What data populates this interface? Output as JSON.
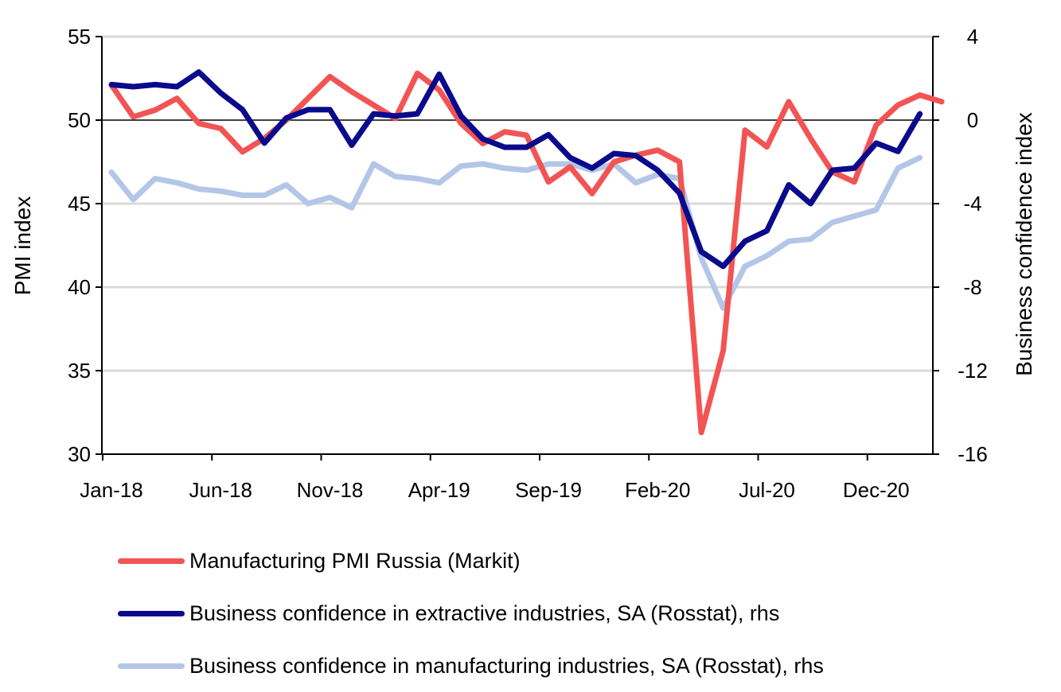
{
  "chart_data": {
    "type": "line",
    "title": "",
    "ylabel_left": "PMI index",
    "ylabel_right": "Business confidence index",
    "ylim_left": [
      30,
      55
    ],
    "ylim_right": [
      -16,
      4
    ],
    "yticks_left": [
      "55",
      "50",
      "45",
      "40",
      "35",
      "30"
    ],
    "yticks_right": [
      "4",
      "0",
      "-4",
      "-8",
      "-12",
      "-16"
    ],
    "xtick_labels": [
      "Jan-18",
      "Jun-18",
      "Nov-18",
      "Apr-19",
      "Sep-19",
      "Feb-20",
      "Jul-20",
      "Dec-20"
    ],
    "grid": true,
    "legend_position": "bottom",
    "x": [
      "Jan-18",
      "Feb-18",
      "Mar-18",
      "Apr-18",
      "May-18",
      "Jun-18",
      "Jul-18",
      "Aug-18",
      "Sep-18",
      "Oct-18",
      "Nov-18",
      "Dec-18",
      "Jan-19",
      "Feb-19",
      "Mar-19",
      "Apr-19",
      "May-19",
      "Jun-19",
      "Jul-19",
      "Aug-19",
      "Sep-19",
      "Oct-19",
      "Nov-19",
      "Dec-19",
      "Jan-20",
      "Feb-20",
      "Mar-20",
      "Apr-20",
      "May-20",
      "Jun-20",
      "Jul-20",
      "Aug-20",
      "Sep-20",
      "Oct-20",
      "Nov-20",
      "Dec-20",
      "Jan-21",
      "Feb-21",
      "Mar-21"
    ],
    "series": [
      {
        "name": "Manufacturing PMI Russia (Markit)",
        "axis": "left",
        "color": "#f25454",
        "values": [
          52.1,
          50.2,
          50.6,
          51.3,
          49.8,
          49.5,
          48.1,
          48.9,
          50.0,
          51.3,
          52.6,
          51.7,
          50.9,
          50.1,
          52.8,
          51.8,
          49.8,
          48.6,
          49.3,
          49.1,
          46.3,
          47.2,
          45.6,
          47.5,
          47.9,
          48.2,
          47.5,
          31.3,
          36.2,
          49.4,
          48.4,
          51.1,
          48.9,
          46.9,
          46.3,
          49.7,
          50.9,
          51.5,
          51.1
        ]
      },
      {
        "name": "Business confidence in extractive industries, SA (Rosstat), rhs",
        "axis": "right",
        "color": "#0a0a8c",
        "values": [
          1.7,
          1.6,
          1.7,
          1.6,
          2.3,
          1.3,
          0.5,
          -1.1,
          0.1,
          0.5,
          0.5,
          -1.2,
          0.3,
          0.2,
          0.3,
          2.2,
          0.2,
          -0.9,
          -1.3,
          -1.3,
          -0.7,
          -1.8,
          -2.3,
          -1.6,
          -1.7,
          -2.4,
          -3.5,
          -6.3,
          -7.0,
          -5.8,
          -5.3,
          -3.1,
          -4.0,
          -2.4,
          -2.3,
          -1.1,
          -1.5,
          0.3,
          null
        ]
      },
      {
        "name": "Business confidence in manufacturing industries, SA (Rosstat), rhs",
        "axis": "right",
        "color": "#b4c6e7",
        "values": [
          -2.5,
          -3.8,
          -2.8,
          -3.0,
          -3.3,
          -3.4,
          -3.6,
          -3.6,
          -3.1,
          -4.0,
          -3.7,
          -4.2,
          -2.1,
          -2.7,
          -2.8,
          -3.0,
          -2.2,
          -2.1,
          -2.3,
          -2.4,
          -2.1,
          -2.1,
          -2.4,
          -2.1,
          -3.0,
          -2.6,
          -2.8,
          -6.6,
          -9.0,
          -7.0,
          -6.5,
          -5.8,
          -5.7,
          -4.9,
          -4.6,
          -4.3,
          -2.3,
          -1.8,
          null
        ]
      }
    ]
  }
}
